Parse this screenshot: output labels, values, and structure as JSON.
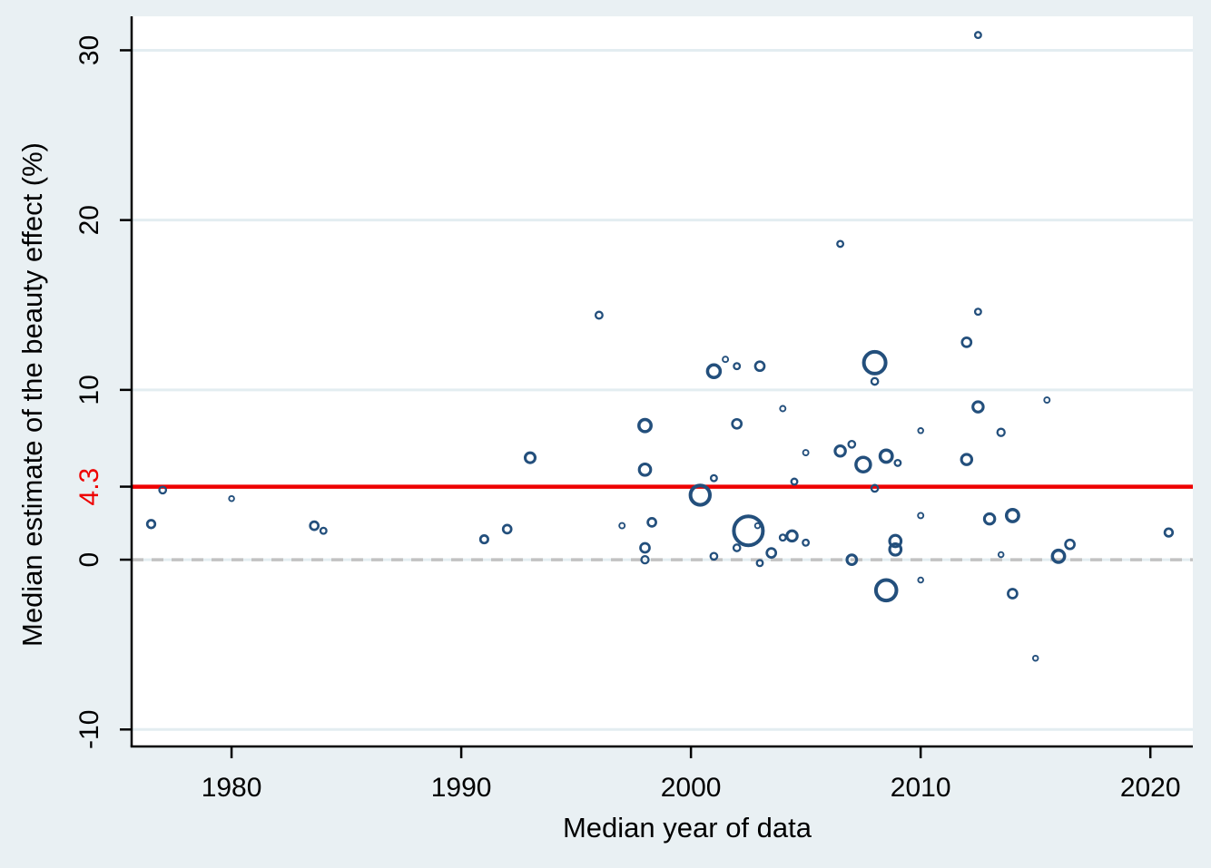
{
  "figure": {
    "background_color": "#e9f0f3",
    "plot_background_color": "#ffffff",
    "grid_color": "#e3edf1",
    "axis_color": "#000000",
    "marker_color": "#234f7c",
    "zero_line": {
      "value": 0,
      "color": "#c2c2c2",
      "style": "dashed"
    },
    "ref_line": {
      "value": 4.3,
      "label": "4.3",
      "color": "#ee0000"
    }
  },
  "chart_data": {
    "type": "scatter",
    "title": "",
    "xlabel": "Median year of data",
    "ylabel": "Median estimate of the beauty effect (%)",
    "xlim": [
      1975.65,
      2021.85
    ],
    "ylim": [
      -11,
      32
    ],
    "x_ticks": [
      1980,
      1990,
      2000,
      2010,
      2020
    ],
    "y_ticks": [
      -10,
      0,
      10,
      20,
      30
    ],
    "ref_tick_label": "4.3",
    "grid": "horizontal-only",
    "legend": "none",
    "marker_style": "hollow circles, size proportional to study weight",
    "points": [
      [
        1976.5,
        2.1,
        4.3
      ],
      [
        1977.0,
        4.1,
        3.7
      ],
      [
        1980.0,
        3.6,
        2.8
      ],
      [
        1983.6,
        2.0,
        4.5
      ],
      [
        1984.0,
        1.7,
        3.3
      ],
      [
        1991.0,
        1.2,
        4.2
      ],
      [
        1992.0,
        1.8,
        4.5
      ],
      [
        1993.0,
        6.0,
        5.5
      ],
      [
        1996.0,
        14.4,
        3.8
      ],
      [
        1997.0,
        2.0,
        3.0
      ],
      [
        1998.0,
        7.9,
        6.7
      ],
      [
        1998.0,
        5.3,
        6.3
      ],
      [
        1998.3,
        2.2,
        4.5
      ],
      [
        1998.0,
        0.7,
        5.0
      ],
      [
        1998.0,
        0.0,
        4.0
      ],
      [
        2000.4,
        3.8,
        10.7
      ],
      [
        2001.0,
        11.1,
        7.0
      ],
      [
        2001.0,
        4.8,
        3.3
      ],
      [
        2001.0,
        0.2,
        3.7
      ],
      [
        2001.5,
        11.8,
        3.0
      ],
      [
        2002.0,
        11.4,
        3.3
      ],
      [
        2002.0,
        8.0,
        5.0
      ],
      [
        2002.0,
        0.7,
        3.7
      ],
      [
        2002.5,
        1.7,
        16.0
      ],
      [
        2002.9,
        2.0,
        2.8
      ],
      [
        2003.0,
        11.4,
        5.0
      ],
      [
        2003.0,
        -0.2,
        3.3
      ],
      [
        2003.5,
        0.4,
        5.0
      ],
      [
        2004.0,
        8.9,
        3.0
      ],
      [
        2004.0,
        1.3,
        3.3
      ],
      [
        2004.4,
        1.4,
        5.7
      ],
      [
        2004.5,
        4.6,
        3.3
      ],
      [
        2005.0,
        6.3,
        3.0
      ],
      [
        2005.0,
        1.0,
        3.3
      ],
      [
        2006.5,
        18.6,
        3.3
      ],
      [
        2006.5,
        6.4,
        5.7
      ],
      [
        2007.0,
        6.8,
        3.7
      ],
      [
        2007.0,
        0.0,
        5.3
      ],
      [
        2007.5,
        5.6,
        8.0
      ],
      [
        2008.0,
        11.6,
        12.0
      ],
      [
        2008.0,
        10.5,
        3.7
      ],
      [
        2008.0,
        4.2,
        3.7
      ],
      [
        2008.5,
        6.1,
        6.7
      ],
      [
        2008.5,
        -1.8,
        11.3
      ],
      [
        2008.9,
        1.1,
        6.3
      ],
      [
        2008.9,
        0.6,
        6.3
      ],
      [
        2009.0,
        5.7,
        3.3
      ],
      [
        2010.0,
        7.6,
        2.8
      ],
      [
        2010.0,
        2.6,
        3.0
      ],
      [
        2010.0,
        -1.2,
        2.8
      ],
      [
        2012.0,
        12.8,
        5.0
      ],
      [
        2012.0,
        5.9,
        5.7
      ],
      [
        2012.5,
        30.9,
        3.3
      ],
      [
        2012.5,
        14.6,
        3.3
      ],
      [
        2012.5,
        9.0,
        5.7
      ],
      [
        2013.0,
        2.4,
        5.7
      ],
      [
        2013.5,
        7.5,
        4.0
      ],
      [
        2013.5,
        0.3,
        2.8
      ],
      [
        2014.0,
        2.6,
        6.7
      ],
      [
        2014.0,
        -2.0,
        5.0
      ],
      [
        2015.0,
        -5.8,
        2.8
      ],
      [
        2015.5,
        9.4,
        3.0
      ],
      [
        2016.0,
        0.2,
        6.7
      ],
      [
        2016.5,
        0.9,
        5.0
      ],
      [
        2020.8,
        1.6,
        4.3
      ]
    ]
  }
}
